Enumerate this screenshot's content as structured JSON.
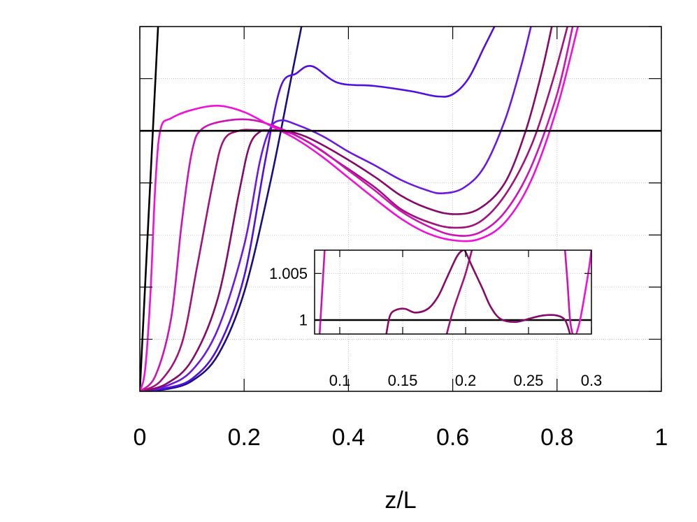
{
  "chart_data": [
    {
      "type": "line",
      "panel": "main",
      "xlabel": "z/L",
      "ylabel": "",
      "xlim": [
        0,
        1
      ],
      "ylim": [
        0,
        3.5
      ],
      "y_ref_line": 2.5,
      "x_ticks": [
        0,
        0.2,
        0.4,
        0.6,
        0.8,
        1
      ],
      "x_tick_labels": [
        "0",
        "0.2",
        "0.4",
        "0.6",
        "0.8",
        "1"
      ],
      "y_ticks": [
        0,
        0.5,
        1,
        1.5,
        2,
        2.5,
        3,
        3.5
      ],
      "grid": true,
      "series": [
        {
          "color": "#000000",
          "points": [
            [
              0,
              0
            ],
            [
              0.035,
              3.5
            ]
          ]
        },
        {
          "color": "#1a0f80",
          "points": [
            [
              0,
              0
            ],
            [
              0.05,
              0.02
            ],
            [
              0.1,
              0.1
            ],
            [
              0.15,
              0.35
            ],
            [
              0.2,
              0.95
            ],
            [
              0.25,
              2.0
            ],
            [
              0.29,
              3.0
            ],
            [
              0.31,
              3.5
            ]
          ]
        },
        {
          "color": "#5210e0",
          "points": [
            [
              0,
              0
            ],
            [
              0.05,
              0.03
            ],
            [
              0.1,
              0.12
            ],
            [
              0.15,
              0.42
            ],
            [
              0.2,
              1.1
            ],
            [
              0.24,
              2.2
            ],
            [
              0.27,
              2.92
            ],
            [
              0.3,
              3.05
            ],
            [
              0.33,
              3.12
            ],
            [
              0.38,
              2.96
            ],
            [
              0.45,
              2.93
            ],
            [
              0.52,
              2.88
            ],
            [
              0.57,
              2.83
            ],
            [
              0.6,
              2.85
            ],
            [
              0.63,
              3.0
            ],
            [
              0.66,
              3.3
            ],
            [
              0.68,
              3.5
            ]
          ]
        },
        {
          "color": "#6a1ae0",
          "points": [
            [
              0,
              0
            ],
            [
              0.05,
              0.05
            ],
            [
              0.1,
              0.2
            ],
            [
              0.15,
              0.6
            ],
            [
              0.2,
              1.4
            ],
            [
              0.23,
              2.2
            ],
            [
              0.25,
              2.52
            ],
            [
              0.27,
              2.6
            ],
            [
              0.3,
              2.56
            ],
            [
              0.35,
              2.45
            ],
            [
              0.4,
              2.3
            ],
            [
              0.45,
              2.17
            ],
            [
              0.5,
              2.03
            ],
            [
              0.55,
              1.93
            ],
            [
              0.58,
              1.9
            ],
            [
              0.62,
              1.95
            ],
            [
              0.66,
              2.15
            ],
            [
              0.7,
              2.6
            ],
            [
              0.73,
              3.1
            ],
            [
              0.75,
              3.5
            ]
          ]
        },
        {
          "color": "#860a6a",
          "points": [
            [
              0,
              0
            ],
            [
              0.05,
              0.07
            ],
            [
              0.1,
              0.3
            ],
            [
              0.15,
              0.9
            ],
            [
              0.19,
              1.9
            ],
            [
              0.21,
              2.35
            ],
            [
              0.23,
              2.49
            ],
            [
              0.25,
              2.505
            ],
            [
              0.28,
              2.5
            ],
            [
              0.32,
              2.44
            ],
            [
              0.38,
              2.28
            ],
            [
              0.45,
              2.06
            ],
            [
              0.5,
              1.88
            ],
            [
              0.55,
              1.76
            ],
            [
              0.6,
              1.7
            ],
            [
              0.65,
              1.75
            ],
            [
              0.7,
              2.0
            ],
            [
              0.74,
              2.5
            ],
            [
              0.77,
              3.05
            ],
            [
              0.79,
              3.5
            ]
          ]
        },
        {
          "color": "#a0137a",
          "points": [
            [
              0,
              0
            ],
            [
              0.04,
              0.1
            ],
            [
              0.08,
              0.45
            ],
            [
              0.11,
              1.2
            ],
            [
              0.14,
              2.0
            ],
            [
              0.16,
              2.4
            ],
            [
              0.19,
              2.5
            ],
            [
              0.23,
              2.505
            ],
            [
              0.28,
              2.49
            ],
            [
              0.32,
              2.4
            ],
            [
              0.38,
              2.2
            ],
            [
              0.45,
              1.96
            ],
            [
              0.5,
              1.75
            ],
            [
              0.55,
              1.63
            ],
            [
              0.6,
              1.57
            ],
            [
              0.65,
              1.62
            ],
            [
              0.7,
              1.88
            ],
            [
              0.75,
              2.35
            ],
            [
              0.79,
              2.95
            ],
            [
              0.82,
              3.5
            ]
          ]
        },
        {
          "color": "#cc14b4",
          "points": [
            [
              0,
              0
            ],
            [
              0.03,
              0.15
            ],
            [
              0.06,
              0.7
            ],
            [
              0.08,
              1.6
            ],
            [
              0.1,
              2.3
            ],
            [
              0.12,
              2.52
            ],
            [
              0.17,
              2.6
            ],
            [
              0.22,
              2.6
            ],
            [
              0.28,
              2.5
            ],
            [
              0.34,
              2.34
            ],
            [
              0.4,
              2.12
            ],
            [
              0.45,
              1.93
            ],
            [
              0.5,
              1.73
            ],
            [
              0.55,
              1.59
            ],
            [
              0.6,
              1.5
            ],
            [
              0.65,
              1.52
            ],
            [
              0.7,
              1.72
            ],
            [
              0.75,
              2.15
            ],
            [
              0.8,
              2.85
            ],
            [
              0.83,
              3.5
            ]
          ]
        },
        {
          "color": "#f010d8",
          "points": [
            [
              0,
              0
            ],
            [
              0.01,
              0.2
            ],
            [
              0.02,
              0.9
            ],
            [
              0.03,
              2.0
            ],
            [
              0.04,
              2.52
            ],
            [
              0.06,
              2.62
            ],
            [
              0.1,
              2.7
            ],
            [
              0.15,
              2.74
            ],
            [
              0.2,
              2.68
            ],
            [
              0.25,
              2.55
            ],
            [
              0.3,
              2.42
            ],
            [
              0.35,
              2.25
            ],
            [
              0.4,
              2.05
            ],
            [
              0.45,
              1.85
            ],
            [
              0.5,
              1.66
            ],
            [
              0.55,
              1.52
            ],
            [
              0.6,
              1.45
            ],
            [
              0.65,
              1.46
            ],
            [
              0.7,
              1.62
            ],
            [
              0.75,
              2.02
            ],
            [
              0.8,
              2.72
            ],
            [
              0.84,
              3.5
            ]
          ]
        },
        {
          "color": "#000000",
          "points": [
            [
              0,
              2.5
            ],
            [
              1,
              2.5
            ]
          ]
        }
      ]
    },
    {
      "type": "line",
      "panel": "inset",
      "xlabel": "",
      "ylabel": "",
      "xlim": [
        0.08,
        0.3
      ],
      "ylim": [
        0.9985,
        1.0075
      ],
      "x_ticks": [
        0.1,
        0.15,
        0.2,
        0.25,
        0.3
      ],
      "x_tick_labels": [
        "0.1",
        "0.15",
        "0.2",
        "0.25",
        "0.3"
      ],
      "y_ticks": [
        1,
        1.005
      ],
      "y_tick_labels": [
        "1",
        "1.005"
      ],
      "grid": true,
      "series": [
        {
          "color": "#000000",
          "points": [
            [
              0.08,
              1.0
            ],
            [
              0.3,
              1.0
            ]
          ]
        },
        {
          "color": "#cc14b4",
          "points": [
            [
              0.084,
              0.9985
            ],
            [
              0.086,
              1.003
            ],
            [
              0.088,
              1.0075
            ]
          ]
        },
        {
          "color": "#a0137a",
          "points": [
            [
              0.185,
              0.9985
            ],
            [
              0.19,
              1.001
            ],
            [
              0.195,
              1.003
            ],
            [
              0.2,
              1.005
            ],
            [
              0.205,
              1.0075
            ]
          ]
        },
        {
          "color": "#860a6a",
          "points": [
            [
              0.137,
              0.9985
            ],
            [
              0.14,
              1.0005
            ],
            [
              0.145,
              1.0011
            ],
            [
              0.152,
              1.0012
            ],
            [
              0.16,
              1.0008
            ],
            [
              0.17,
              1.0012
            ],
            [
              0.178,
              1.0025
            ],
            [
              0.185,
              1.0045
            ],
            [
              0.193,
              1.0068
            ],
            [
              0.198,
              1.0075
            ],
            [
              0.2,
              1.0073
            ],
            [
              0.205,
              1.0058
            ],
            [
              0.213,
              1.0035
            ],
            [
              0.22,
              1.0014
            ],
            [
              0.228,
              1.0001
            ],
            [
              0.24,
              0.9998
            ],
            [
              0.252,
              1.0002
            ],
            [
              0.262,
              1.0005
            ],
            [
              0.272,
              1.0005
            ],
            [
              0.279,
              1.0
            ],
            [
              0.283,
              0.9985
            ]
          ]
        },
        {
          "color": "#cc14b4",
          "points": [
            [
              0.279,
              1.0075
            ],
            [
              0.281,
              1.004
            ],
            [
              0.283,
              1.0
            ],
            [
              0.285,
              0.9985
            ]
          ]
        },
        {
          "color": "#f010d8",
          "points": [
            [
              0.288,
              0.9985
            ],
            [
              0.291,
              1.0
            ],
            [
              0.295,
              1.003
            ],
            [
              0.298,
              1.0055
            ],
            [
              0.3,
              1.0075
            ]
          ]
        }
      ]
    }
  ]
}
